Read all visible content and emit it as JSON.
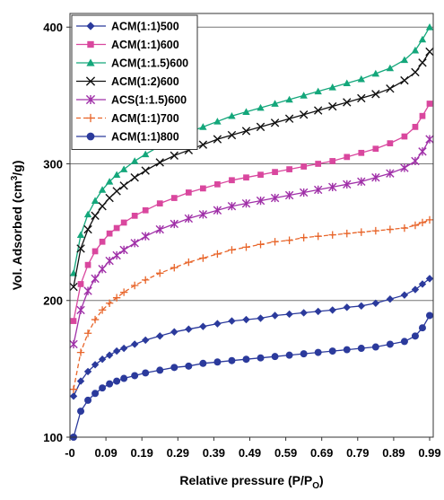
{
  "chart_data": {
    "type": "scatter",
    "title": "",
    "xlabel_parts": [
      "Relative pressure (P/P",
      "O",
      ")"
    ],
    "ylabel_parts": [
      "Vol. Adsorbed (cm",
      "3",
      "/g)"
    ],
    "xlim": [
      -0.01,
      1.0
    ],
    "ylim": [
      100,
      410
    ],
    "x_tick_labels": [
      "-0",
      "0.09",
      "0.19",
      "0.29",
      "0.39",
      "0.49",
      "0.59",
      "0.69",
      "0.79",
      "0.89",
      "0.99"
    ],
    "x_tick_values": [
      -0.01,
      0.09,
      0.19,
      0.29,
      0.39,
      0.49,
      0.59,
      0.69,
      0.79,
      0.89,
      0.99
    ],
    "y_ticks": [
      100,
      200,
      300,
      400
    ],
    "grid": "horizontal",
    "legend_position": "top-left",
    "series": [
      {
        "name": "ACM(1:1)500",
        "color": "#2B3A9C",
        "marker": "diamond",
        "x": [
          0.0,
          0.02,
          0.04,
          0.06,
          0.08,
          0.1,
          0.12,
          0.14,
          0.17,
          0.2,
          0.24,
          0.28,
          0.32,
          0.36,
          0.4,
          0.44,
          0.48,
          0.52,
          0.56,
          0.6,
          0.64,
          0.68,
          0.72,
          0.76,
          0.8,
          0.84,
          0.88,
          0.92,
          0.95,
          0.97,
          0.99
        ],
        "y": [
          130,
          141,
          148,
          153,
          157,
          160,
          163,
          165,
          168,
          171,
          174,
          177,
          179,
          181,
          183,
          185,
          186,
          187,
          189,
          190,
          191,
          192,
          193,
          195,
          196,
          198,
          201,
          204,
          208,
          212,
          216
        ]
      },
      {
        "name": "ACM(1:1)600",
        "color": "#D9479E",
        "marker": "square",
        "x": [
          0.0,
          0.02,
          0.04,
          0.06,
          0.08,
          0.1,
          0.12,
          0.14,
          0.17,
          0.2,
          0.24,
          0.28,
          0.32,
          0.36,
          0.4,
          0.44,
          0.48,
          0.52,
          0.56,
          0.6,
          0.64,
          0.68,
          0.72,
          0.76,
          0.8,
          0.84,
          0.88,
          0.92,
          0.95,
          0.97,
          0.99
        ],
        "y": [
          185,
          212,
          226,
          236,
          243,
          249,
          253,
          257,
          262,
          266,
          271,
          275,
          279,
          282,
          285,
          288,
          290,
          292,
          294,
          296,
          298,
          300,
          302,
          305,
          308,
          311,
          315,
          320,
          327,
          335,
          344
        ]
      },
      {
        "name": "ACM(1:1.5)600",
        "color": "#14A77B",
        "marker": "triangle",
        "x": [
          0.0,
          0.02,
          0.04,
          0.06,
          0.08,
          0.1,
          0.12,
          0.14,
          0.17,
          0.2,
          0.24,
          0.28,
          0.32,
          0.36,
          0.4,
          0.44,
          0.48,
          0.52,
          0.56,
          0.6,
          0.64,
          0.68,
          0.72,
          0.76,
          0.8,
          0.84,
          0.88,
          0.92,
          0.95,
          0.97,
          0.99
        ],
        "y": [
          220,
          248,
          263,
          273,
          281,
          287,
          292,
          296,
          302,
          307,
          313,
          318,
          323,
          327,
          331,
          335,
          338,
          341,
          344,
          347,
          350,
          353,
          356,
          359,
          362,
          366,
          370,
          376,
          383,
          391,
          400
        ]
      },
      {
        "name": "ACM(1:2)600",
        "color": "#111111",
        "marker": "x",
        "x": [
          0.0,
          0.02,
          0.04,
          0.06,
          0.08,
          0.1,
          0.12,
          0.14,
          0.17,
          0.2,
          0.24,
          0.28,
          0.32,
          0.36,
          0.4,
          0.44,
          0.48,
          0.52,
          0.56,
          0.6,
          0.64,
          0.68,
          0.72,
          0.76,
          0.8,
          0.84,
          0.88,
          0.92,
          0.95,
          0.97,
          0.99
        ],
        "y": [
          210,
          238,
          252,
          262,
          269,
          275,
          280,
          284,
          290,
          295,
          301,
          306,
          310,
          314,
          318,
          321,
          324,
          327,
          330,
          333,
          336,
          339,
          342,
          345,
          348,
          351,
          355,
          361,
          367,
          374,
          382
        ]
      },
      {
        "name": "ACS(1:1.5)600",
        "color": "#A030A8",
        "marker": "asterisk",
        "x": [
          0.0,
          0.02,
          0.04,
          0.06,
          0.08,
          0.1,
          0.12,
          0.14,
          0.17,
          0.2,
          0.24,
          0.28,
          0.32,
          0.36,
          0.4,
          0.44,
          0.48,
          0.52,
          0.56,
          0.6,
          0.64,
          0.68,
          0.72,
          0.76,
          0.8,
          0.84,
          0.88,
          0.92,
          0.95,
          0.97,
          0.99
        ],
        "y": [
          168,
          193,
          207,
          216,
          223,
          229,
          233,
          237,
          242,
          247,
          252,
          256,
          260,
          263,
          266,
          269,
          271,
          273,
          275,
          277,
          279,
          281,
          283,
          285,
          287,
          290,
          293,
          297,
          302,
          309,
          318
        ]
      },
      {
        "name": "ACM(1:1)700",
        "color": "#E8652A",
        "marker": "plus",
        "x": [
          0.0,
          0.02,
          0.04,
          0.06,
          0.08,
          0.1,
          0.12,
          0.14,
          0.17,
          0.2,
          0.24,
          0.28,
          0.32,
          0.36,
          0.4,
          0.44,
          0.48,
          0.52,
          0.56,
          0.6,
          0.64,
          0.68,
          0.72,
          0.76,
          0.8,
          0.84,
          0.88,
          0.92,
          0.95,
          0.97,
          0.99
        ],
        "y": [
          135,
          162,
          176,
          186,
          193,
          198,
          202,
          206,
          211,
          215,
          220,
          224,
          228,
          231,
          234,
          237,
          239,
          241,
          243,
          244,
          246,
          247,
          248,
          249,
          250,
          251,
          252,
          253,
          255,
          257,
          259
        ]
      },
      {
        "name": "ACM(1:1)800",
        "color": "#2B3A9C",
        "marker": "circle",
        "x": [
          0.0,
          0.02,
          0.04,
          0.06,
          0.08,
          0.1,
          0.12,
          0.14,
          0.17,
          0.2,
          0.24,
          0.28,
          0.32,
          0.36,
          0.4,
          0.44,
          0.48,
          0.52,
          0.56,
          0.6,
          0.64,
          0.68,
          0.72,
          0.76,
          0.8,
          0.84,
          0.88,
          0.92,
          0.95,
          0.97,
          0.99
        ],
        "y": [
          100,
          119,
          127,
          132,
          136,
          139,
          141,
          143,
          145,
          147,
          149,
          151,
          152,
          154,
          155,
          156,
          157,
          158,
          159,
          160,
          161,
          162,
          163,
          164,
          165,
          166,
          168,
          170,
          174,
          180,
          189
        ]
      }
    ]
  }
}
